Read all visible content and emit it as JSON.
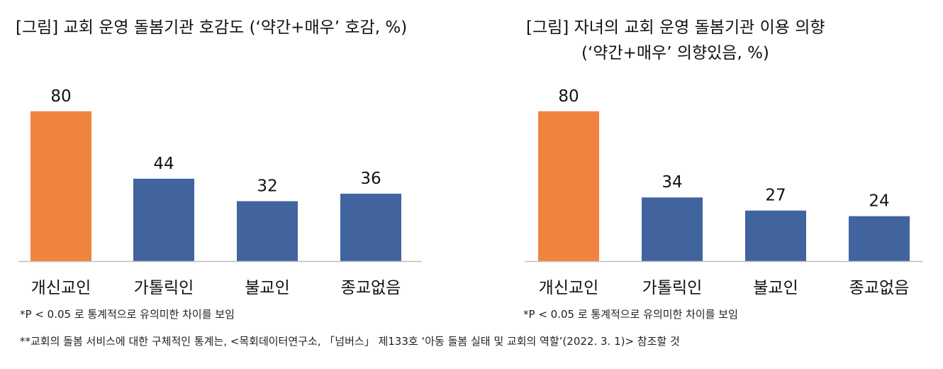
{
  "chart_data": [
    {
      "type": "bar",
      "title": "[그림] 교회 운영 돌봄기관 호감도 (‘약간+매우’ 호감, %)",
      "categories": [
        "개신교인",
        "가톨릭인",
        "불교인",
        "종교없음"
      ],
      "values": [
        80,
        44,
        32,
        36
      ],
      "bar_colors": [
        "#F0843F",
        "#41649E",
        "#41649E",
        "#41649E"
      ],
      "xlabel": "",
      "ylabel": "",
      "ylim": [
        0,
        100
      ],
      "grid": false,
      "legend": "none",
      "note": "*P < 0.05 로 통계적으로 유의미한 차이를 보임"
    },
    {
      "type": "bar",
      "title": "[그림] 자녀의 교회 운영 돌봄기관 이용 의향",
      "subtitle": "(‘약간+매우’ 의향있음, %)",
      "categories": [
        "개신교인",
        "가톨릭인",
        "불교인",
        "종교없음"
      ],
      "values": [
        80,
        34,
        27,
        24
      ],
      "bar_colors": [
        "#F0843F",
        "#41649E",
        "#41649E",
        "#41649E"
      ],
      "xlabel": "",
      "ylabel": "",
      "ylim": [
        0,
        100
      ],
      "grid": false,
      "legend": "none",
      "note": "*P < 0.05 로 통계적으로 유의미한 차이를 보임"
    }
  ],
  "footnote": "**교회의 돌봄 서비스에 대한 구체적인 통계는, <목회데이터연구소, 「넘버스」 제133호 ‘아동 돌봄 실태 및 교회의 역할’(2022. 3. 1)> 참조할 것",
  "colors": {
    "highlight": "#F0843F",
    "primary": "#41649E",
    "axis": "#BFBFBF"
  }
}
